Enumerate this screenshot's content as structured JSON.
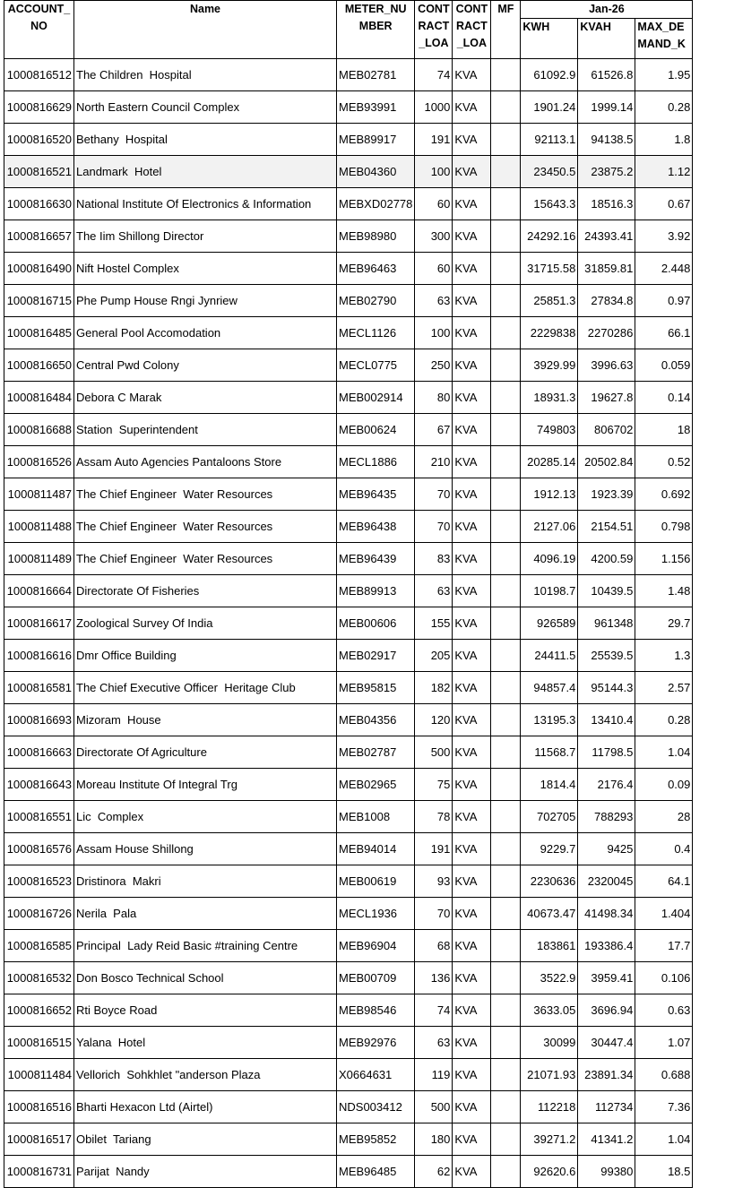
{
  "headers": {
    "account_no": "ACCOUNT_ NO",
    "name": "Name",
    "meter_number": "METER_NU MBER",
    "contract_load": "CONT RACT _LOA",
    "contract_load_unit": "CONT RACT _LOA",
    "mf": "MF",
    "period": "Jan-26",
    "kwh": "KWH",
    "kvah": "KVAH",
    "max_demand": "MAX_DE MAND_K"
  },
  "selected_row": 3,
  "rows": [
    [
      "1000816512",
      "The Children  Hospital",
      "MEB02781",
      "74",
      "KVA",
      "",
      "61092.9",
      "61526.8",
      "1.95"
    ],
    [
      "1000816629",
      "North Eastern Council Complex",
      "MEB93991",
      "1000",
      "KVA",
      "",
      "1901.24",
      "1999.14",
      "0.28"
    ],
    [
      "1000816520",
      "Bethany  Hospital",
      "MEB89917",
      "191",
      "KVA",
      "",
      "92113.1",
      "94138.5",
      "1.8"
    ],
    [
      "1000816521",
      "Landmark  Hotel",
      "MEB04360",
      "100",
      "KVA",
      "",
      "23450.5",
      "23875.2",
      "1.12"
    ],
    [
      "1000816630",
      "National Institute Of Electronics & Information",
      "MEBXD02778",
      "60",
      "KVA",
      "",
      "15643.3",
      "18516.3",
      "0.67"
    ],
    [
      "1000816657",
      "The Iim Shillong Director",
      "MEB98980",
      "300",
      "KVA",
      "",
      "24292.16",
      "24393.41",
      "3.92"
    ],
    [
      "1000816490",
      "Nift Hostel Complex",
      "MEB96463",
      "60",
      "KVA",
      "",
      "31715.58",
      "31859.81",
      "2.448"
    ],
    [
      "1000816715",
      "Phe Pump House Rngi Jynriew",
      "MEB02790",
      "63",
      "KVA",
      "",
      "25851.3",
      "27834.8",
      "0.97"
    ],
    [
      "1000816485",
      "General Pool Accomodation",
      "MECL1126",
      "100",
      "KVA",
      "",
      "2229838",
      "2270286",
      "66.1"
    ],
    [
      "1000816650",
      "Central Pwd Colony",
      "MECL0775",
      "250",
      "KVA",
      "",
      "3929.99",
      "3996.63",
      "0.059"
    ],
    [
      "1000816484",
      "Debora C Marak",
      "MEB002914",
      "80",
      "KVA",
      "",
      "18931.3",
      "19627.8",
      "0.14"
    ],
    [
      "1000816688",
      "Station  Superintendent",
      "MEB00624",
      "67",
      "KVA",
      "",
      "749803",
      "806702",
      "18"
    ],
    [
      "1000816526",
      "Assam Auto Agencies Pantaloons Store",
      "MECL1886",
      "210",
      "KVA",
      "",
      "20285.14",
      "20502.84",
      "0.52"
    ],
    [
      "1000811487",
      "The Chief Engineer  Water Resources",
      "MEB96435",
      "70",
      "KVA",
      "",
      "1912.13",
      "1923.39",
      "0.692"
    ],
    [
      "1000811488",
      "The Chief Engineer  Water Resources",
      "MEB96438",
      "70",
      "KVA",
      "",
      "2127.06",
      "2154.51",
      "0.798"
    ],
    [
      "1000811489",
      "The Chief Engineer  Water Resources",
      "MEB96439",
      "83",
      "KVA",
      "",
      "4096.19",
      "4200.59",
      "1.156"
    ],
    [
      "1000816664",
      "Directorate Of Fisheries",
      "MEB89913",
      "63",
      "KVA",
      "",
      "10198.7",
      "10439.5",
      "1.48"
    ],
    [
      "1000816617",
      "Zoological Survey Of India",
      "MEB00606",
      "155",
      "KVA",
      "",
      "926589",
      "961348",
      "29.7"
    ],
    [
      "1000816616",
      "Dmr Office Building",
      "MEB02917",
      "205",
      "KVA",
      "",
      "24411.5",
      "25539.5",
      "1.3"
    ],
    [
      "1000816581",
      "The Chief Executive Officer  Heritage Club",
      "MEB95815",
      "182",
      "KVA",
      "",
      "94857.4",
      "95144.3",
      "2.57"
    ],
    [
      "1000816693",
      "Mizoram  House",
      "MEB04356",
      "120",
      "KVA",
      "",
      "13195.3",
      "13410.4",
      "0.28"
    ],
    [
      "1000816663",
      "Directorate Of Agriculture",
      "MEB02787",
      "500",
      "KVA",
      "",
      "11568.7",
      "11798.5",
      "1.04"
    ],
    [
      "1000816643",
      "Moreau Institute Of Integral Trg",
      "MEB02965",
      "75",
      "KVA",
      "",
      "1814.4",
      "2176.4",
      "0.09"
    ],
    [
      "1000816551",
      "Lic  Complex",
      "MEB1008",
      "78",
      "KVA",
      "",
      "702705",
      "788293",
      "28"
    ],
    [
      "1000816576",
      "Assam House Shillong",
      "MEB94014",
      "191",
      "KVA",
      "",
      "9229.7",
      "9425",
      "0.4"
    ],
    [
      "1000816523",
      "Dristinora  Makri",
      "MEB00619",
      "93",
      "KVA",
      "",
      "2230636",
      "2320045",
      "64.1"
    ],
    [
      "1000816726",
      "Nerila  Pala",
      "MECL1936",
      "70",
      "KVA",
      "",
      "40673.47",
      "41498.34",
      "1.404"
    ],
    [
      "1000816585",
      "Principal  Lady Reid Basic #training Centre",
      "MEB96904",
      "68",
      "KVA",
      "",
      "183861",
      "193386.4",
      "17.7"
    ],
    [
      "1000816532",
      "Don Bosco Technical School",
      "MEB00709",
      "136",
      "KVA",
      "",
      "3522.9",
      "3959.41",
      "0.106"
    ],
    [
      "1000816652",
      "Rti Boyce Road",
      "MEB98546",
      "74",
      "KVA",
      "",
      "3633.05",
      "3696.94",
      "0.63"
    ],
    [
      "1000816515",
      "Yalana  Hotel",
      "MEB92976",
      "63",
      "KVA",
      "",
      "30099",
      "30447.4",
      "1.07"
    ],
    [
      "1000811484",
      "Vellorich  Sohkhlet \"anderson Plaza",
      "X0664631",
      "119",
      "KVA",
      "",
      "21071.93",
      "23891.34",
      "0.688"
    ],
    [
      "1000816516",
      "Bharti Hexacon Ltd (Airtel)",
      "NDS003412",
      "500",
      "KVA",
      "",
      "112218",
      "112734",
      "7.36"
    ],
    [
      "1000816517",
      "Obilet  Tariang",
      "MEB95852",
      "180",
      "KVA",
      "",
      "39271.2",
      "41341.2",
      "1.04"
    ],
    [
      "1000816731",
      "Parijat  Nandy",
      "MEB96485",
      "62",
      "KVA",
      "",
      "92620.6",
      "99380",
      "18.5"
    ]
  ]
}
